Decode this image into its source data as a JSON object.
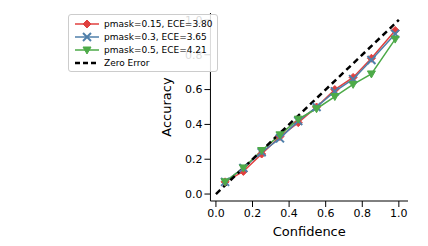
{
  "chart_data": {
    "type": "line",
    "x_label": "Confidence",
    "y_label": "Accuracy",
    "xlim": [
      -0.03,
      1.05
    ],
    "ylim": [
      -0.04,
      1.04
    ],
    "xticks": [
      {
        "value": 0,
        "label": "0.0"
      },
      {
        "value": 0.2,
        "label": "0.2"
      },
      {
        "value": 0.4,
        "label": "0.4"
      },
      {
        "value": 0.6,
        "label": "0.6"
      },
      {
        "value": 0.8,
        "label": "0.8"
      },
      {
        "value": 1,
        "label": "1.0"
      }
    ],
    "yticks": [
      {
        "value": 0,
        "label": "0.0"
      },
      {
        "value": 0.2,
        "label": "0.2"
      },
      {
        "value": 0.4,
        "label": "0.4"
      },
      {
        "value": 0.6,
        "label": "0.6"
      },
      {
        "value": 0.8,
        "label": "0.8"
      },
      {
        "value": 1,
        "label": "1.0"
      }
    ],
    "grid": false,
    "legend": "upper left",
    "series": [
      {
        "name": "pmask=0.15, ECE=3.80",
        "color": "#e0413f",
        "marker": "diamond",
        "line_style": "solid",
        "x": [
          0.05,
          0.15,
          0.25,
          0.35,
          0.45,
          0.55,
          0.65,
          0.75,
          0.85,
          0.98
        ],
        "values": [
          0.07,
          0.13,
          0.23,
          0.33,
          0.41,
          0.5,
          0.6,
          0.67,
          0.78,
          0.94
        ]
      },
      {
        "name": "pmask=0.3, ECE=3.65",
        "color": "#4f7faa",
        "marker": "x",
        "line_style": "solid",
        "x": [
          0.05,
          0.15,
          0.25,
          0.35,
          0.45,
          0.55,
          0.65,
          0.75,
          0.85,
          0.98
        ],
        "values": [
          0.07,
          0.15,
          0.24,
          0.32,
          0.42,
          0.5,
          0.59,
          0.66,
          0.77,
          0.92
        ]
      },
      {
        "name": "pmask=0.5, ECE=4.21",
        "color": "#4daa48",
        "marker": "triangle_down",
        "line_style": "solid",
        "x": [
          0.05,
          0.15,
          0.25,
          0.35,
          0.45,
          0.55,
          0.65,
          0.75,
          0.85,
          0.98
        ],
        "values": [
          0.07,
          0.15,
          0.25,
          0.34,
          0.43,
          0.49,
          0.56,
          0.63,
          0.69,
          0.89
        ]
      },
      {
        "name": "Zero Error",
        "color": "#000000",
        "marker": "none",
        "line_style": "dashed",
        "x": [
          0,
          1
        ],
        "values": [
          0,
          1
        ]
      }
    ]
  }
}
